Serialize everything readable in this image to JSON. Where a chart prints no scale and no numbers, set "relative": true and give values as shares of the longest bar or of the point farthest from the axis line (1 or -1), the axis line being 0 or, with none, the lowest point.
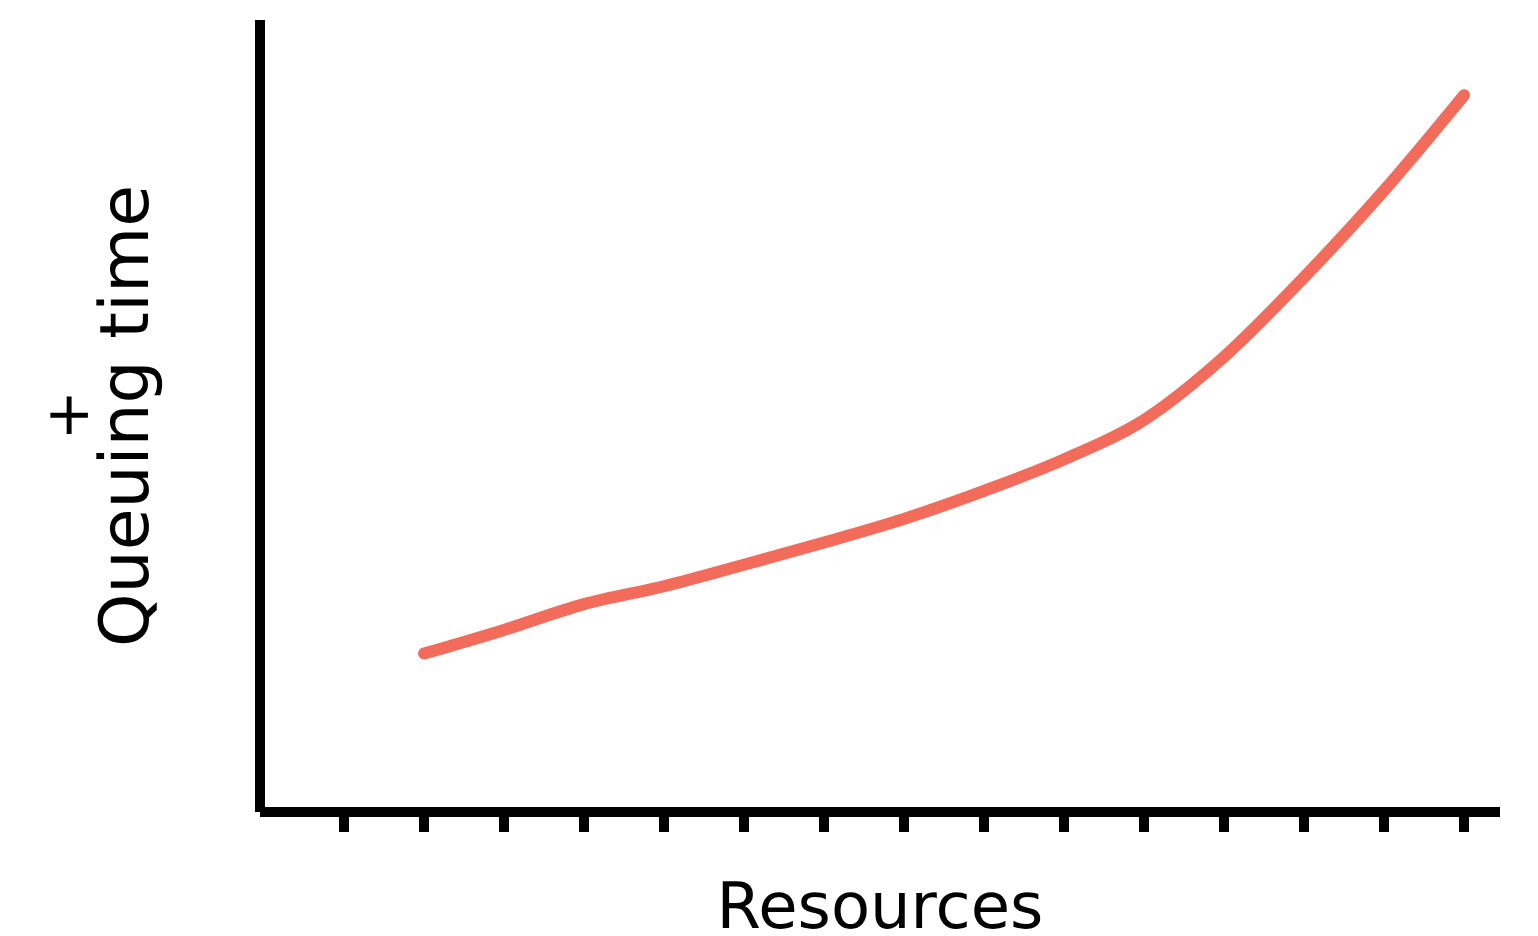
{
  "chart_data": {
    "type": "line",
    "relative": true,
    "xlabel": "Resources",
    "ylabel": "Queuing time",
    "annotations": [
      "+"
    ],
    "categories": [
      null,
      null,
      null,
      null,
      null,
      null,
      null,
      null,
      null,
      null,
      null,
      null,
      null,
      null,
      null
    ],
    "series": [
      {
        "color": "#f26b5b",
        "values": [
          null,
          0.221,
          0.254,
          0.29,
          0.315,
          0.345,
          0.376,
          0.409,
          0.448,
          0.492,
          0.547,
          0.635,
          0.746,
          0.867,
          1
        ]
      }
    ],
    "marker": "none",
    "line_style": "solid"
  }
}
